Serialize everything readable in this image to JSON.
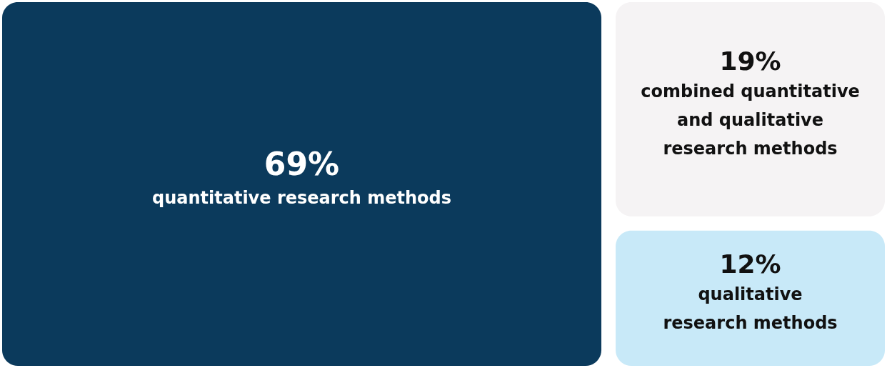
{
  "chart_data": {
    "type": "other",
    "categories": [
      "quantitative research methods",
      "combined quantitative\nand qualitative\nresearch methods",
      "qualitative\nresearch methods"
    ],
    "values": [
      69,
      19,
      12
    ],
    "value_labels": [
      "69%",
      "19%",
      "12%"
    ],
    "colors": [
      "#0b3a5c",
      "#f5f3f4",
      "#c8e9f8"
    ]
  }
}
